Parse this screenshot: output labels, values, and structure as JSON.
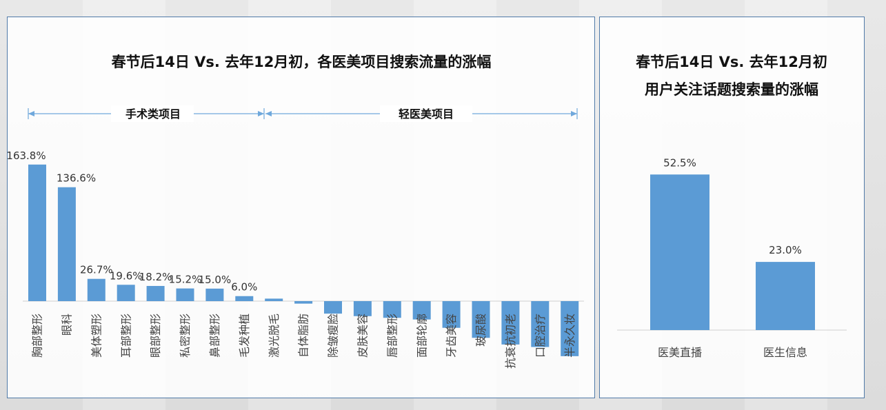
{
  "colors": {
    "bar": "#5b9bd5",
    "border": "#4f79a7",
    "arrow": "#6fa8dc",
    "axis": "#cfcfcf"
  },
  "left_panel": {
    "title": "春节后14日 Vs. 去年12月初，各医美项目搜索流量的涨幅",
    "group_surgical": "手术类项目",
    "group_light": "轻医美项目"
  },
  "right_panel": {
    "title_line1": "春节后14日 Vs. 去年12月初",
    "title_line2": "用户关注话题搜索量的涨幅"
  },
  "chart_data": [
    {
      "type": "bar",
      "title": "春节后14日 Vs. 去年12月初，各医美项目搜索流量的涨幅",
      "categories": [
        "胸部整形",
        "眼科",
        "美体塑形",
        "耳部整形",
        "眼部整形",
        "私密整形",
        "鼻部整形",
        "毛发种植",
        "激光脱毛",
        "自体脂肪",
        "除皱瘦脸",
        "皮肤美容",
        "唇部整形",
        "面部轮廓",
        "牙齿美容",
        "玻尿酸",
        "抗衰抗初老",
        "口腔治疗",
        "半永久妆"
      ],
      "values": [
        163.8,
        136.6,
        26.7,
        19.6,
        18.2,
        15.2,
        15.0,
        6.0,
        3.0,
        -3.0,
        -15.0,
        -18.0,
        -20.0,
        -22.0,
        -32.0,
        -44.0,
        -52.0,
        -55.0,
        -66.0
      ],
      "data_labels": [
        "163.8%",
        "136.6%",
        "26.7%",
        "19.6%",
        "18.2%",
        "15.2%",
        "15.0%",
        "6.0%",
        "",
        "",
        "",
        "",
        "",
        "",
        "",
        "",
        "",
        "",
        ""
      ],
      "groups": [
        {
          "name": "手术类项目",
          "from": "胸部整形",
          "to": "毛发种植"
        },
        {
          "name": "轻医美项目",
          "from": "激光脱毛",
          "to": "半永久妆"
        }
      ],
      "ylim": [
        -70,
        170
      ],
      "grid": false
    },
    {
      "type": "bar",
      "title": "春节后14日 Vs. 去年12月初 用户关注话题搜索量的涨幅",
      "categories": [
        "医美直播",
        "医生信息"
      ],
      "values": [
        52.5,
        23.0
      ],
      "data_labels": [
        "52.5%",
        "23.0%"
      ],
      "ylim": [
        0,
        60
      ],
      "grid": false
    }
  ]
}
